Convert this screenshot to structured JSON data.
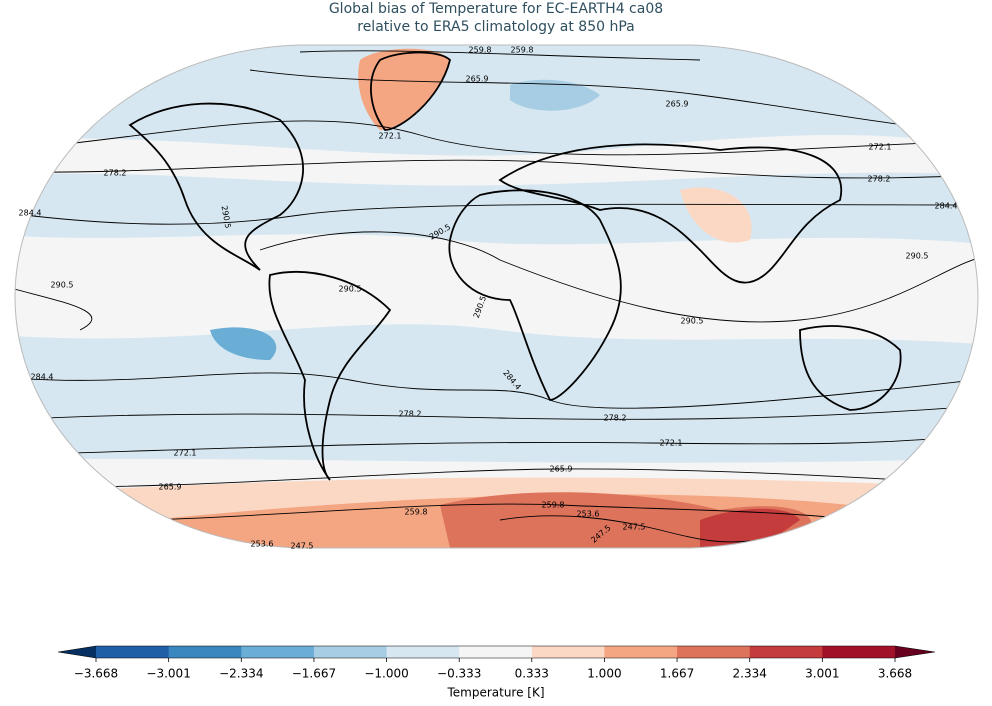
{
  "title": [
    "Global bias of Temperature for EC-EARTH4 ca08",
    "relative to ERA5 climatology at 850 hPa"
  ],
  "contour_labels": [
    "259.8",
    "259.8",
    "265.9",
    "265.9",
    "272.1",
    "272.1",
    "278.2",
    "278.2",
    "284.4",
    "284.4",
    "290.5",
    "290.5",
    "290.5",
    "290.5",
    "290.5",
    "290.5",
    "290.5",
    "284.4",
    "284.4",
    "278.2",
    "278.2",
    "272.1",
    "272.1",
    "265.9",
    "265.9",
    "259.8",
    "259.8",
    "253.6",
    "247.5",
    "247.5",
    "253.6",
    "247.5"
  ],
  "colorbar": {
    "label": "Temperature [K]",
    "ticks": [
      {
        "value": -3.668,
        "label": "−3.668"
      },
      {
        "value": -3.001,
        "label": "−3.001"
      },
      {
        "value": -2.334,
        "label": "−2.334"
      },
      {
        "value": -1.667,
        "label": "−1.667"
      },
      {
        "value": -1.0,
        "label": "−1.000"
      },
      {
        "value": -0.333,
        "label": "−0.333"
      },
      {
        "value": 0.333,
        "label": "0.333"
      },
      {
        "value": 1.0,
        "label": "1.000"
      },
      {
        "value": 1.667,
        "label": "1.667"
      },
      {
        "value": 2.334,
        "label": "2.334"
      },
      {
        "value": 3.001,
        "label": "3.001"
      },
      {
        "value": 3.668,
        "label": "3.668"
      }
    ],
    "colors": [
      "#1f5fa6",
      "#3a87c0",
      "#6aaed6",
      "#a6cde3",
      "#d6e7f1",
      "#f5f5f5",
      "#fbd8c4",
      "#f4a582",
      "#de735c",
      "#c43c3c",
      "#a11228"
    ],
    "extend_colors": [
      "#053061",
      "#67001f"
    ]
  }
}
